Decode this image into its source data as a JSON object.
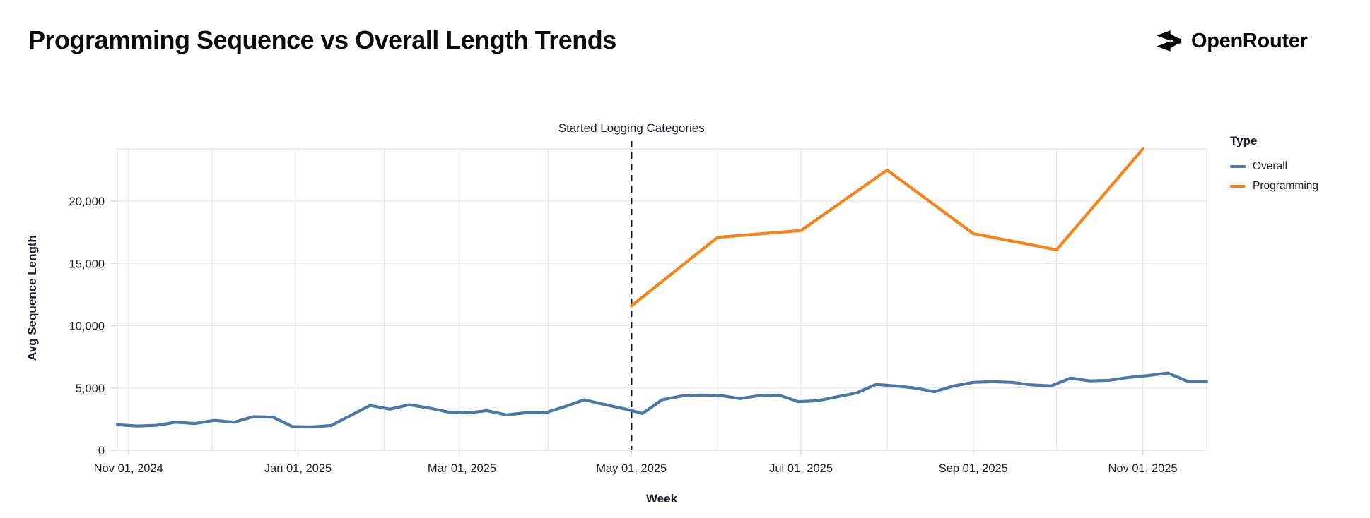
{
  "header": {
    "title": "Programming Sequence vs Overall Length Trends",
    "logo": {
      "text": "OpenRouter",
      "icon": "openrouter-arrows-icon"
    }
  },
  "chart_data": {
    "type": "line",
    "title": "Programming Sequence vs Overall Length Trends",
    "xlabel": "Week",
    "ylabel": "Avg Sequence Length",
    "legend": {
      "title": "Type",
      "position": "right"
    },
    "annotation": {
      "text": "Started Logging Categories",
      "date": "2025-05-01",
      "style": "vertical-dashed-line"
    },
    "grid": true,
    "x_domain": [
      "2024-10-28",
      "2025-11-24"
    ],
    "ylim": [
      0,
      24200
    ],
    "grid_months": [
      "2024-11-01",
      "2024-12-01",
      "2025-01-01",
      "2025-02-01",
      "2025-03-01",
      "2025-04-01",
      "2025-05-01",
      "2025-06-01",
      "2025-07-01",
      "2025-08-01",
      "2025-09-01",
      "2025-10-01",
      "2025-11-01"
    ],
    "xticks": [
      {
        "date": "2024-11-01",
        "label": "Nov 01, 2024"
      },
      {
        "date": "2025-01-01",
        "label": "Jan 01, 2025"
      },
      {
        "date": "2025-03-01",
        "label": "Mar 01, 2025"
      },
      {
        "date": "2025-05-01",
        "label": "May 01, 2025"
      },
      {
        "date": "2025-07-01",
        "label": "Jul 01, 2025"
      },
      {
        "date": "2025-09-01",
        "label": "Sep 01, 2025"
      },
      {
        "date": "2025-11-01",
        "label": "Nov 01, 2025"
      }
    ],
    "yticks": [
      {
        "value": 0,
        "label": "0"
      },
      {
        "value": 5000,
        "label": "5,000"
      },
      {
        "value": 10000,
        "label": "10,000"
      },
      {
        "value": 15000,
        "label": "15,000"
      },
      {
        "value": 20000,
        "label": "20,000"
      }
    ],
    "colors": {
      "overall": "#4c78a8",
      "programming": "#f58518",
      "grid": "#e6e6ee",
      "border": "#e0e0e8",
      "tick": "#d8d8e0",
      "axis_text": "#1c1e2a",
      "annotation_line": "#1a1c2e"
    },
    "series": [
      {
        "name": "Overall",
        "color": "#4c78a8",
        "freq": "weekly",
        "x_start": "2024-10-28",
        "x_step_days": 7,
        "values": [
          2050,
          1950,
          2000,
          2250,
          2150,
          2400,
          2250,
          2700,
          2650,
          1900,
          1870,
          1990,
          2800,
          3600,
          3300,
          3650,
          3400,
          3070,
          3000,
          3180,
          2840,
          3010,
          3010,
          3500,
          4050,
          3690,
          3350,
          2950,
          4050,
          4350,
          4430,
          4400,
          4150,
          4380,
          4430,
          3900,
          3980,
          4290,
          4600,
          5290,
          5170,
          5000,
          4700,
          5170,
          5450,
          5510,
          5450,
          5250,
          5170,
          5790,
          5570,
          5620,
          5850,
          6000,
          6200,
          5550,
          5500
        ]
      },
      {
        "name": "Programming",
        "color": "#f58518",
        "freq": "monthly",
        "x": [
          "2025-05-01",
          "2025-06-01",
          "2025-07-01",
          "2025-08-01",
          "2025-09-01",
          "2025-10-01",
          "2025-11-01"
        ],
        "values": [
          11600,
          17100,
          17650,
          22500,
          17400,
          16100,
          24200
        ]
      }
    ]
  }
}
